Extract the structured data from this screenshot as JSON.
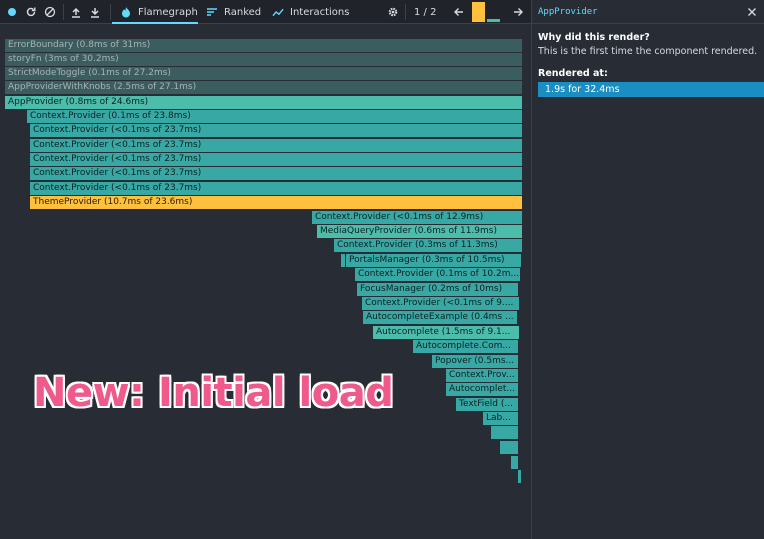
{
  "toolbar": {
    "record_icon": "record-icon",
    "reload_icon": "reload-icon",
    "clear_icon": "clear-icon",
    "upload_icon": "upload-icon",
    "download_icon": "download-icon",
    "tabs": [
      {
        "label": "Flamegraph",
        "icon": "flame-icon",
        "active": true
      },
      {
        "label": "Ranked",
        "icon": "ranked-icon",
        "active": false
      },
      {
        "label": "Interactions",
        "icon": "interactions-icon",
        "active": false
      }
    ],
    "settings_icon": "gear-icon",
    "commit_counter": "1 / 2",
    "prev_icon": "arrow-left-icon",
    "next_icon": "arrow-right-icon",
    "colors": {
      "accent": "#61dafb",
      "commit_selected": "#ffc13d",
      "commit_other": "#4cbcab"
    }
  },
  "flamegraph": {
    "nodes": [
      {
        "label": "ErrorBoundary (0.8ms of 31ms)",
        "style": "gray"
      },
      {
        "label": "storyFn (3ms of 30.2ms)",
        "style": "gray"
      },
      {
        "label": "StrictModeToggle (0.1ms of 27.2ms)",
        "style": "gray"
      },
      {
        "label": "AppProviderWithKnobs (2.5ms of 27.1ms)",
        "style": "gray"
      },
      {
        "label": "AppProvider (0.8ms of 24.6ms)",
        "style": "teal2"
      },
      {
        "label": "Context.Provider (0.1ms of 23.8ms)",
        "style": "teal"
      },
      {
        "label": "Context.Provider (<0.1ms of 23.7ms)",
        "style": "teal"
      },
      {
        "label": "Context.Provider (<0.1ms of 23.7ms)",
        "style": "teal"
      },
      {
        "label": "Context.Provider (<0.1ms of 23.7ms)",
        "style": "teal"
      },
      {
        "label": "Context.Provider (<0.1ms of 23.7ms)",
        "style": "teal"
      },
      {
        "label": "Context.Provider (<0.1ms of 23.7ms)",
        "style": "teal"
      },
      {
        "label": "ThemeProvider (10.7ms of 23.6ms)",
        "style": "yellow"
      },
      {
        "label": "Context.Provider (<0.1ms of 12.9ms)",
        "style": "teal"
      },
      {
        "label": "MediaQueryProvider (0.6ms of 11.9ms)",
        "style": "teal2"
      },
      {
        "label": "Context.Provider (0.3ms of 11.3ms)",
        "style": "teal"
      },
      {
        "label": "PortalsManager (0.3ms of 10.5ms)",
        "style": "teal"
      },
      {
        "label": "Context.Provider (0.1ms of 10.2m...",
        "style": "teal"
      },
      {
        "label": "FocusManager (0.2ms of 10ms)",
        "style": "teal"
      },
      {
        "label": "Context.Provider (<0.1ms of 9....",
        "style": "teal"
      },
      {
        "label": "AutocompleteExample (0.4ms ...",
        "style": "teal"
      },
      {
        "label": "Autocomplete (1.5ms of 9.1...",
        "style": "teal2"
      },
      {
        "label": "Autocomplete.Com...",
        "style": "teal"
      },
      {
        "label": "Popover (0.5ms...",
        "style": "teal"
      },
      {
        "label": "Context.Prov...",
        "style": "teal"
      },
      {
        "label": "Autocomplet...",
        "style": "teal"
      },
      {
        "label": "TextField (...",
        "style": "teal"
      },
      {
        "label": "Lab...",
        "style": "teal"
      },
      {
        "label": "",
        "style": "teal"
      },
      {
        "label": "",
        "style": "teal"
      },
      {
        "label": "",
        "style": "teal"
      },
      {
        "label": "",
        "style": "teal"
      },
      {
        "label": "",
        "style": "teal"
      }
    ]
  },
  "overlay": {
    "text": "New: Initial load",
    "color": "#f05a8a"
  },
  "sidebar": {
    "title": "AppProvider",
    "close_icon": "close-icon",
    "why_heading": "Why did this render?",
    "why_text": "This is the first time the component rendered.",
    "rendered_heading": "Rendered at",
    "rendered_items": [
      "1.9s for 32.4ms"
    ]
  }
}
